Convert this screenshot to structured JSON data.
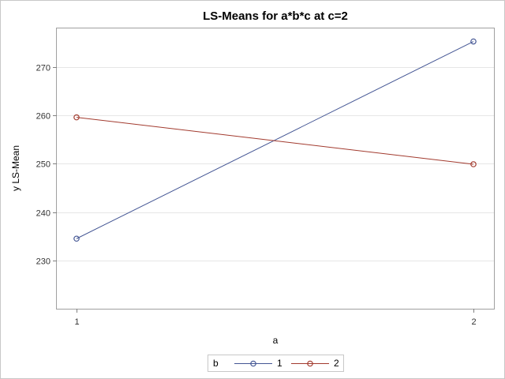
{
  "chart_data": {
    "type": "line",
    "title": "LS-Means for a*b*c at c=2",
    "xlabel": "a",
    "ylabel": "y LS-Mean",
    "x": [
      "1",
      "2"
    ],
    "ylim": [
      220,
      278
    ],
    "yticks": [
      230,
      240,
      250,
      260,
      270
    ],
    "grid": "horizontal",
    "legend": {
      "title": "b",
      "placement": "bottom"
    },
    "series": [
      {
        "name": "1",
        "values": [
          234.5,
          275.3
        ],
        "color": "#445694"
      },
      {
        "name": "2",
        "values": [
          259.6,
          249.9
        ],
        "color": "#A23A2E"
      }
    ]
  }
}
